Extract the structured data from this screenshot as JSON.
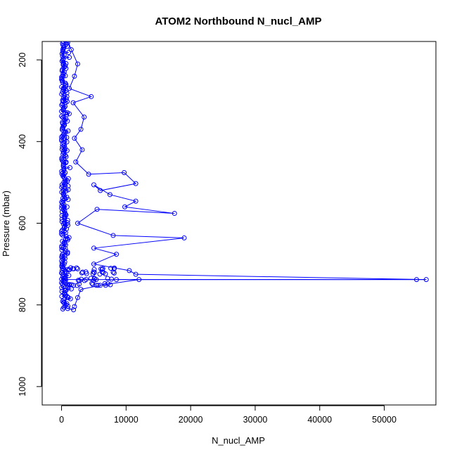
{
  "chart_data": {
    "type": "scatter",
    "title": "ATOM2 Northbound N_nucl_AMP",
    "xlabel": "N_nucl_AMP",
    "ylabel": "Pressure (mbar)",
    "xlim": [
      -3000,
      58000
    ],
    "ylim": [
      1045,
      155
    ],
    "y_inverted": true,
    "grid": false,
    "legend": "none",
    "x_ticks": [
      0,
      10000,
      20000,
      30000,
      40000,
      50000
    ],
    "y_ticks": [
      200,
      400,
      600,
      800,
      1000
    ],
    "color": "#0000ff",
    "marker": "open-circle",
    "series": [
      {
        "points": [
          [
            150,
            160
          ],
          [
            200,
            180
          ],
          [
            300,
            210
          ],
          [
            250,
            240
          ],
          [
            400,
            270
          ],
          [
            300,
            300
          ],
          [
            600,
            330
          ],
          [
            400,
            360
          ],
          [
            800,
            390
          ],
          [
            500,
            420
          ],
          [
            700,
            450
          ],
          [
            400,
            480
          ],
          [
            600,
            500
          ],
          [
            300,
            520
          ],
          [
            500,
            540
          ],
          [
            400,
            560
          ],
          [
            700,
            580
          ],
          [
            500,
            600
          ],
          [
            400,
            620
          ],
          [
            600,
            640
          ],
          [
            300,
            660
          ],
          [
            500,
            680
          ],
          [
            400,
            700
          ],
          [
            800,
            720
          ],
          [
            500,
            735
          ],
          [
            1200,
            750
          ],
          [
            600,
            765
          ],
          [
            900,
            780
          ],
          [
            400,
            795
          ],
          [
            200,
            810
          ]
        ]
      },
      {
        "points": [
          [
            900,
            150
          ],
          [
            1500,
            175
          ],
          [
            2500,
            210
          ],
          [
            2000,
            240
          ],
          [
            1200,
            270
          ],
          [
            4600,
            290
          ],
          [
            1800,
            305
          ],
          [
            3500,
            340
          ],
          [
            3000,
            370
          ],
          [
            2000,
            392
          ],
          [
            3200,
            420
          ],
          [
            2200,
            450
          ],
          [
            4200,
            480
          ],
          [
            9700,
            476
          ],
          [
            11500,
            503
          ],
          [
            6000,
            520
          ],
          [
            5000,
            506
          ],
          [
            7500,
            530
          ],
          [
            11500,
            546
          ],
          [
            9800,
            560
          ],
          [
            17500,
            576
          ],
          [
            5500,
            566
          ],
          [
            2500,
            600
          ],
          [
            8000,
            630
          ],
          [
            19000,
            636
          ],
          [
            5000,
            661
          ],
          [
            8500,
            676
          ],
          [
            5000,
            700
          ],
          [
            10500,
            716
          ],
          [
            11500,
            725
          ],
          [
            56500,
            738
          ],
          [
            55000,
            738
          ],
          [
            8500,
            738
          ],
          [
            12000,
            738
          ],
          [
            6000,
            752
          ],
          [
            3000,
            762
          ],
          [
            2500,
            782
          ],
          [
            2000,
            804
          ]
        ]
      }
    ],
    "horizontal_segment": {
      "y": 738,
      "x_from": 0,
      "x_to": 56500
    },
    "dense_band_x_range": [
      0,
      1500
    ]
  }
}
